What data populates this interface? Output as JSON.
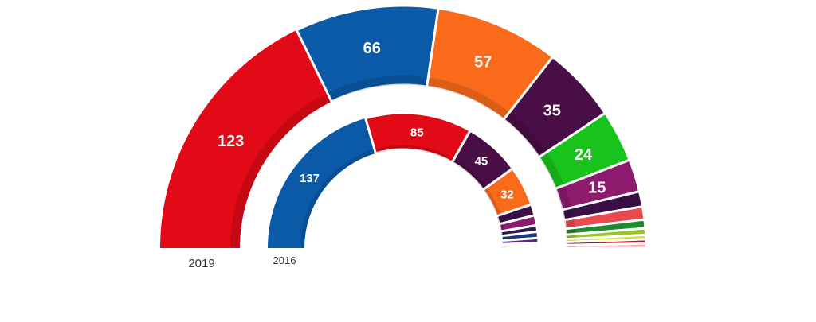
{
  "chart_data": {
    "type": "pie",
    "rings": [
      {
        "year": "2019",
        "segments": [
          {
            "value": 123,
            "color": "#e20a17",
            "label": "123"
          },
          {
            "value": 66,
            "color": "#0b5aa8",
            "label": "66"
          },
          {
            "value": 57,
            "color": "#f96b1b",
            "label": "57"
          },
          {
            "value": 35,
            "color": "#4a0e46",
            "label": "35"
          },
          {
            "value": 24,
            "color": "#18c41c",
            "label": "24"
          },
          {
            "value": 15,
            "color": "#8e1a6e",
            "label": "15"
          },
          {
            "value": 7,
            "color": "#3a0f46",
            "label": ""
          },
          {
            "value": 6,
            "color": "#e84a50",
            "label": ""
          },
          {
            "value": 4,
            "color": "#1f8a2e",
            "label": ""
          },
          {
            "value": 3,
            "color": "#9ac42a",
            "label": ""
          },
          {
            "value": 2,
            "color": "#d3e329",
            "label": ""
          },
          {
            "value": 2,
            "color": "#b01c28",
            "label": ""
          },
          {
            "value": 2,
            "color": "#f2a0a8",
            "label": ""
          }
        ]
      },
      {
        "year": "2016",
        "segments": [
          {
            "value": 137,
            "color": "#0b5aa8",
            "label": "137"
          },
          {
            "value": 85,
            "color": "#e20a17",
            "label": "85"
          },
          {
            "value": 45,
            "color": "#4a0e46",
            "label": "45"
          },
          {
            "value": 32,
            "color": "#f96b1b",
            "label": "32"
          },
          {
            "value": 9,
            "color": "#3a0f46",
            "label": ""
          },
          {
            "value": 8,
            "color": "#8e1a6e",
            "label": ""
          },
          {
            "value": 5,
            "color": "#2b1a4a",
            "label": ""
          },
          {
            "value": 5,
            "color": "#163a7a",
            "label": ""
          },
          {
            "value": 4,
            "color": "#5a2a7a",
            "label": ""
          },
          {
            "value": 2,
            "color": "#1f8a2e",
            "label": ""
          },
          {
            "value": 2,
            "color": "#d3e329",
            "label": ""
          }
        ]
      }
    ]
  }
}
